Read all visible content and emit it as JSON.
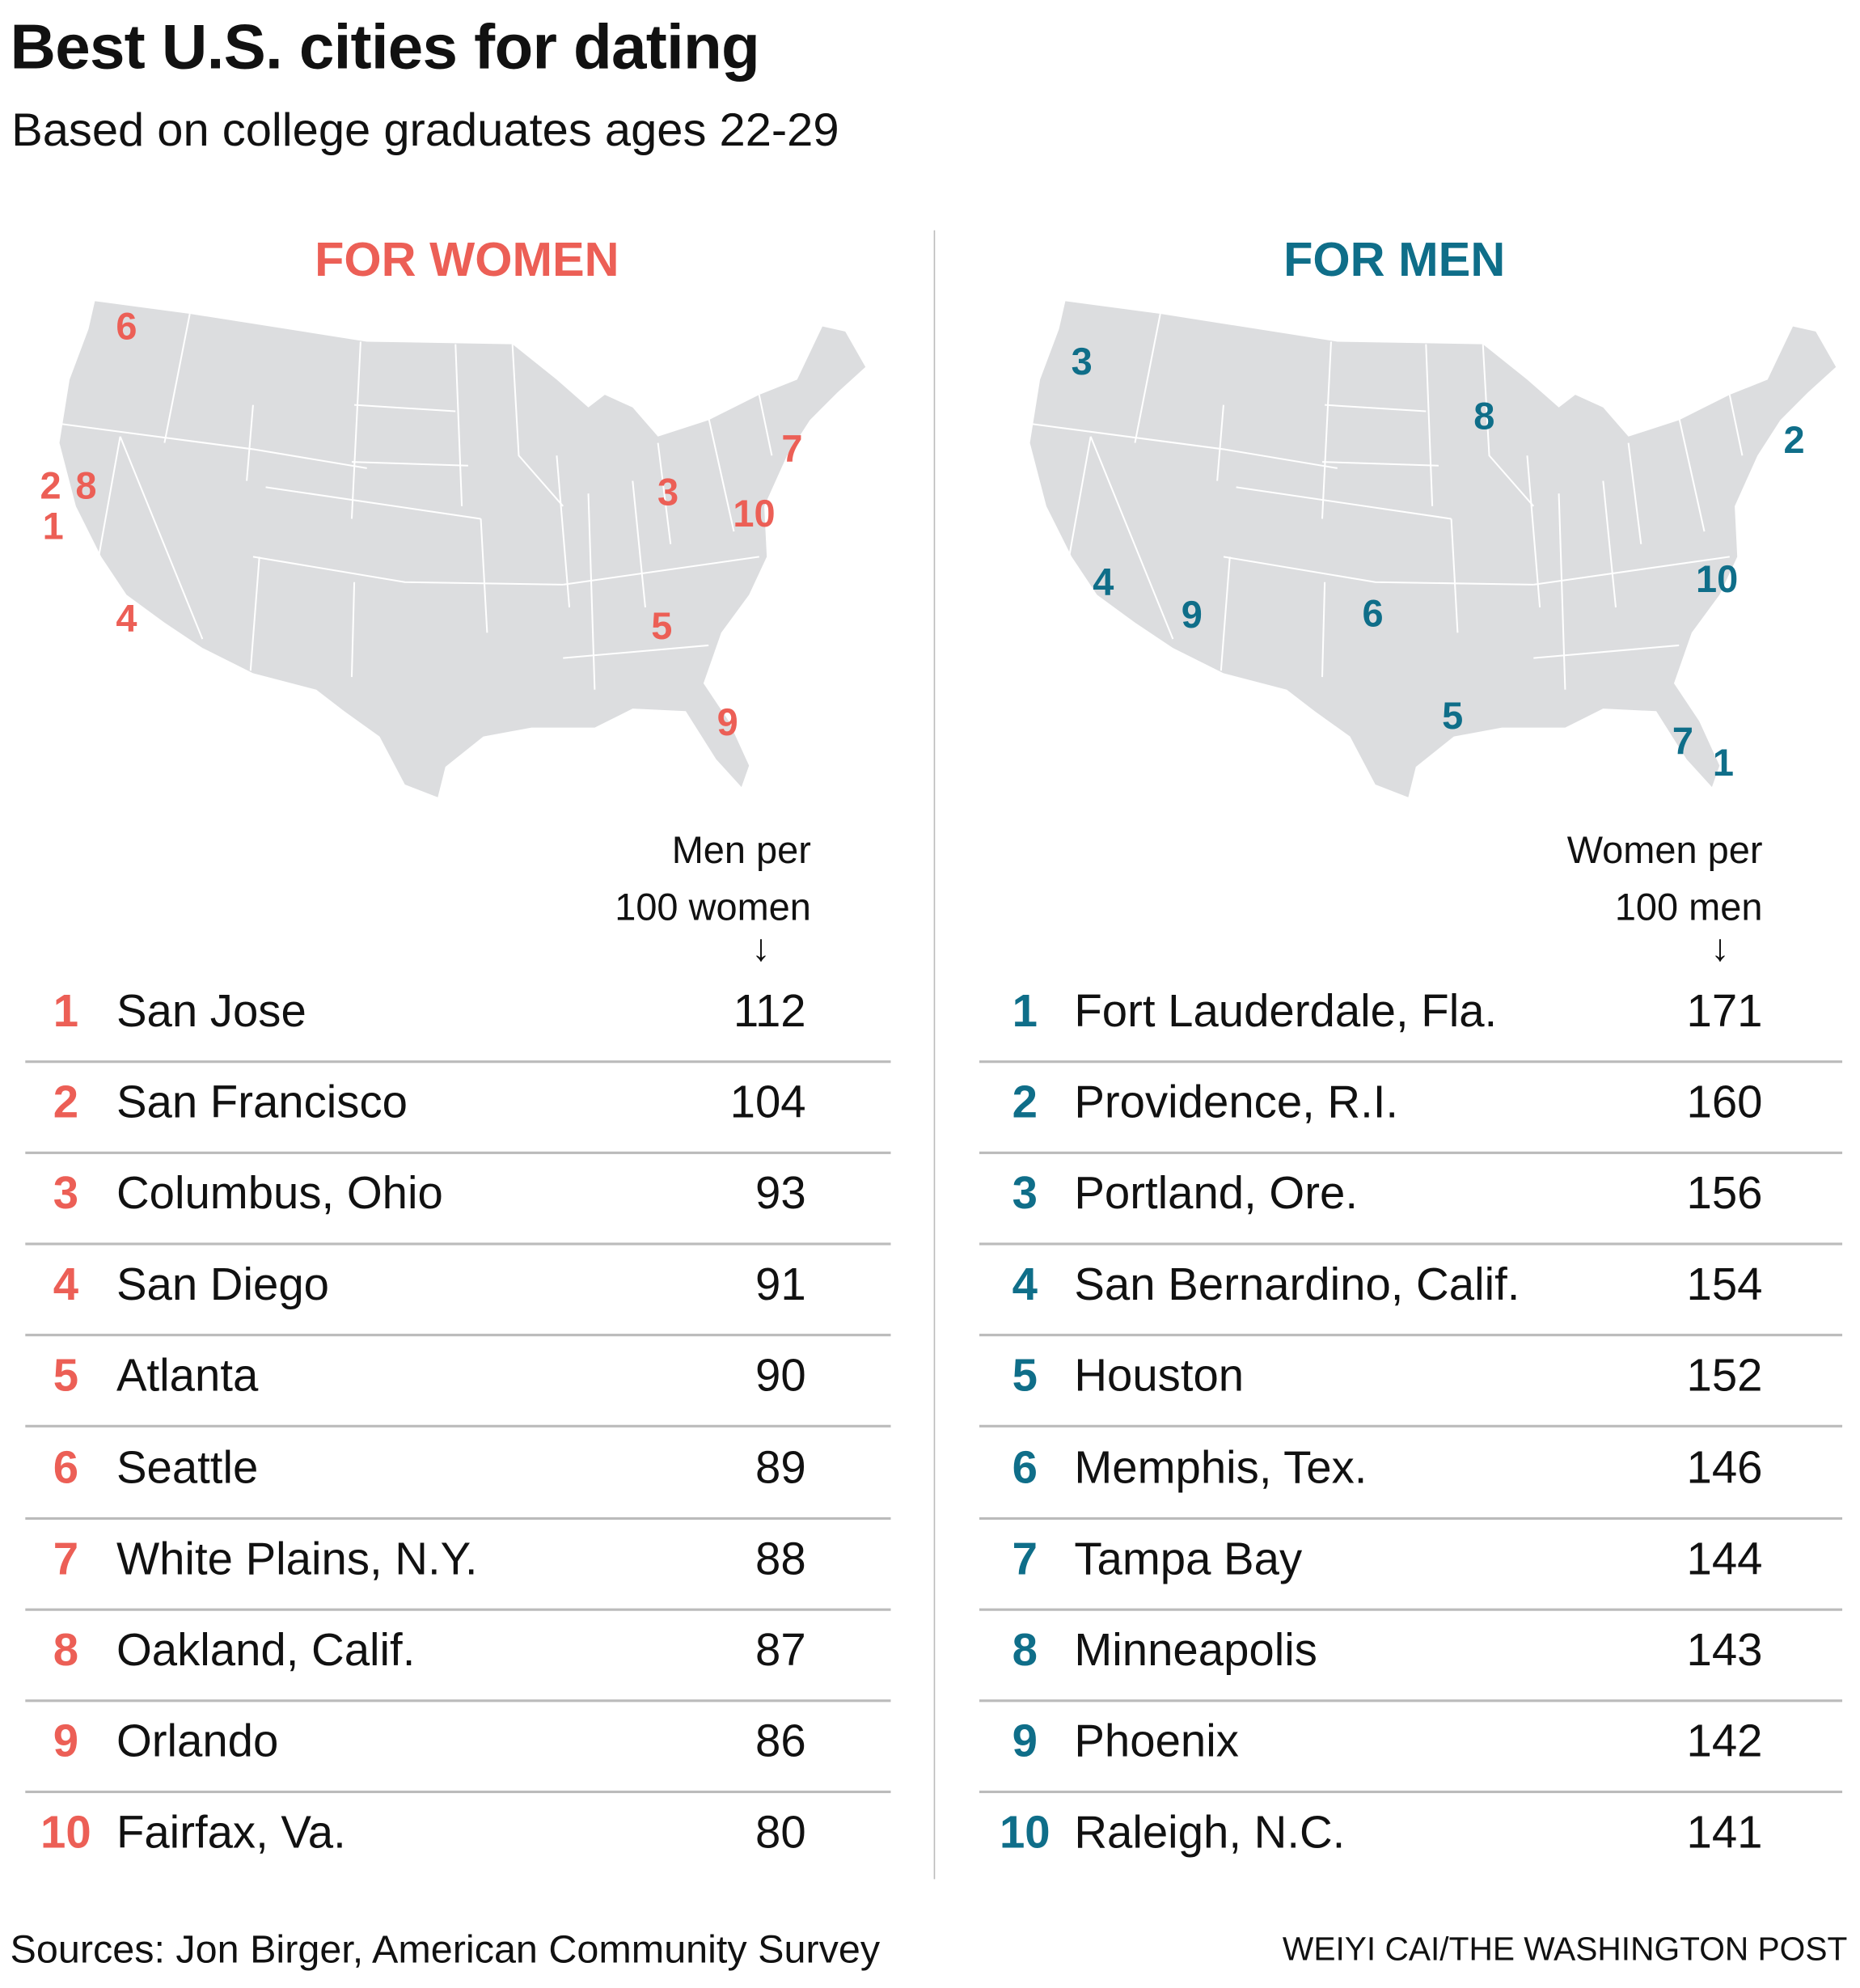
{
  "title": "Best U.S. cities for dating",
  "subtitle": "Based on college graduates ages 22-29",
  "colors": {
    "women": "#ec5f56",
    "men": "#0f6e89",
    "map_fill": "#dcdddf",
    "divider": "#bbbbbb"
  },
  "chart_data": [
    {
      "type": "table",
      "title": "FOR WOMEN",
      "column_header_line1": "Men per",
      "column_header_line2": "100 women",
      "arrow": "↓",
      "rows": [
        {
          "rank": "1",
          "city": "San Jose",
          "value": 112
        },
        {
          "rank": "2",
          "city": "San Francisco",
          "value": 104
        },
        {
          "rank": "3",
          "city": "Columbus, Ohio",
          "value": 93
        },
        {
          "rank": "4",
          "city": "San Diego",
          "value": 91
        },
        {
          "rank": "5",
          "city": "Atlanta",
          "value": 90
        },
        {
          "rank": "6",
          "city": "Seattle",
          "value": 89
        },
        {
          "rank": "7",
          "city": "White Plains, N.Y.",
          "value": 88
        },
        {
          "rank": "8",
          "city": "Oakland, Calif.",
          "value": 87
        },
        {
          "rank": "9",
          "city": "Orlando",
          "value": 86
        },
        {
          "rank": "10",
          "city": "Fairfax, Va.",
          "value": 80
        }
      ]
    },
    {
      "type": "table",
      "title": "FOR MEN",
      "column_header_line1": "Women per",
      "column_header_line2": "100 men",
      "arrow": "↓",
      "rows": [
        {
          "rank": "1",
          "city": "Fort Lauderdale, Fla.",
          "value": 171
        },
        {
          "rank": "2",
          "city": "Providence, R.I.",
          "value": 160
        },
        {
          "rank": "3",
          "city": "Portland, Ore.",
          "value": 156
        },
        {
          "rank": "4",
          "city": "San Bernardino, Calif.",
          "value": 154
        },
        {
          "rank": "5",
          "city": "Houston",
          "value": 152
        },
        {
          "rank": "6",
          "city": "Memphis, Tex.",
          "value": 146
        },
        {
          "rank": "7",
          "city": "Tampa Bay",
          "value": 144
        },
        {
          "rank": "8",
          "city": "Minneapolis",
          "value": 143
        },
        {
          "rank": "9",
          "city": "Phoenix",
          "value": 142
        },
        {
          "rank": "10",
          "city": "Raleigh, N.C.",
          "value": 141
        }
      ]
    }
  ],
  "footer": {
    "sources": "Sources: Jon Birger, American Community Survey",
    "credit": "WEIYI CAI/THE WASHINGTON POST"
  }
}
